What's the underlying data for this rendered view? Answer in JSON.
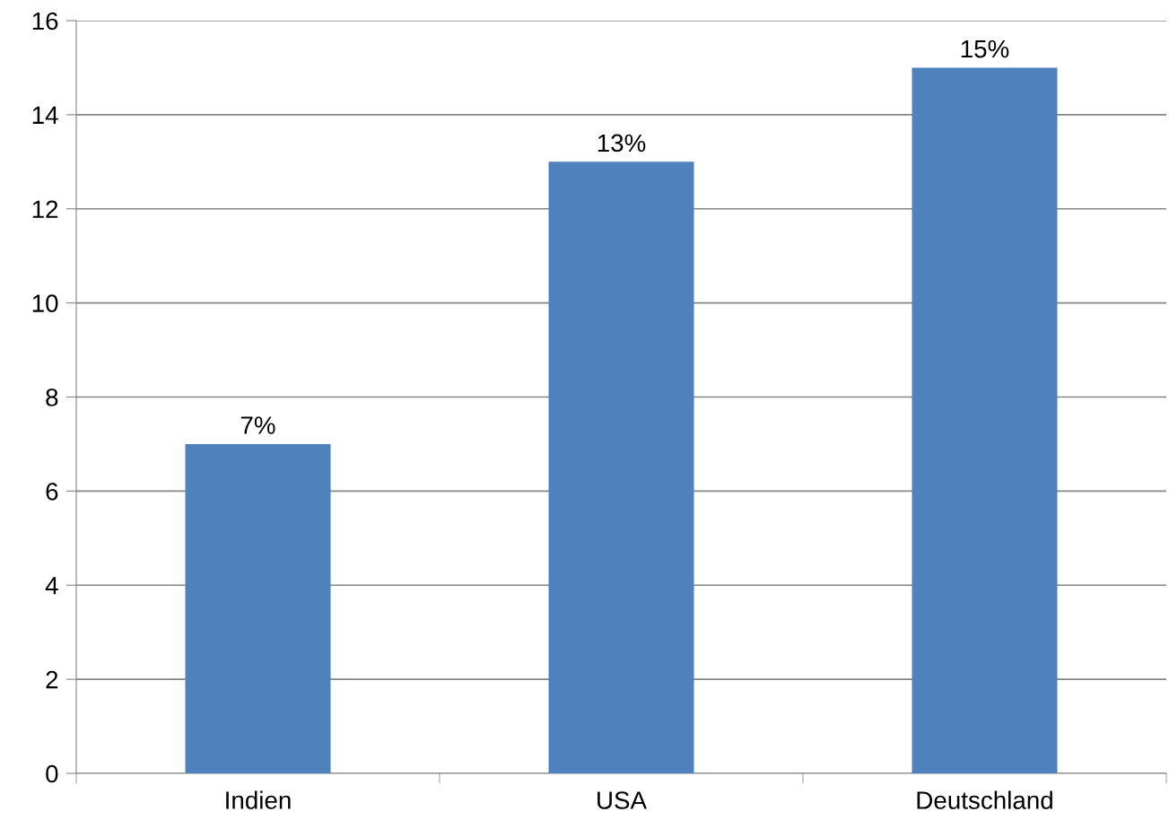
{
  "chart_data": {
    "type": "bar",
    "categories": [
      "Indien",
      "USA",
      "Deutschland"
    ],
    "values": [
      7,
      13,
      15
    ],
    "value_labels": [
      "7%",
      "13%",
      "15%"
    ],
    "color": "#4f81bd",
    "ylim": [
      0,
      16
    ],
    "yticks": [
      0,
      2,
      4,
      6,
      8,
      10,
      12,
      14,
      16
    ],
    "grid": "y",
    "legend": false
  }
}
